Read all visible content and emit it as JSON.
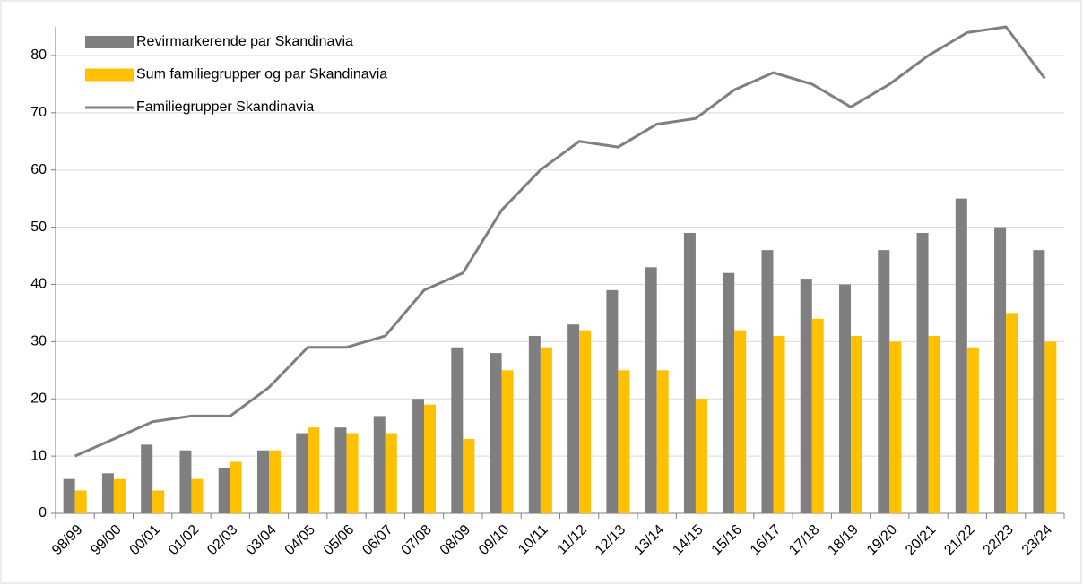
{
  "chart_data": {
    "type": "bar_line",
    "categories": [
      "98/99",
      "99/00",
      "00/01",
      "01/02",
      "02/03",
      "03/04",
      "04/05",
      "05/06",
      "06/07",
      "07/08",
      "08/09",
      "09/10",
      "10/11",
      "11/12",
      "12/13",
      "13/14",
      "14/15",
      "15/16",
      "16/17",
      "17/18",
      "18/19",
      "19/20",
      "20/21",
      "21/22",
      "22/23",
      "23/24"
    ],
    "series": [
      {
        "name": "Revirmarkerende par Skandinavia",
        "type": "bar",
        "color": "#7f7f7f",
        "values": [
          6,
          7,
          12,
          11,
          8,
          11,
          14,
          15,
          17,
          20,
          29,
          28,
          31,
          33,
          39,
          43,
          49,
          42,
          46,
          41,
          40,
          46,
          49,
          55,
          50,
          46
        ]
      },
      {
        "name": "Sum familiegrupper og par Skandinavia",
        "type": "bar",
        "color": "#ffc000",
        "values": [
          4,
          6,
          4,
          6,
          9,
          11,
          15,
          14,
          14,
          19,
          13,
          25,
          29,
          32,
          25,
          25,
          20,
          32,
          31,
          34,
          31,
          30,
          31,
          29,
          35,
          30
        ]
      },
      {
        "name": "Familiegrupper Skandinavia",
        "type": "line",
        "color": "#7f7f7f",
        "values": [
          10,
          13,
          16,
          17,
          17,
          22,
          29,
          29,
          31,
          39,
          42,
          53,
          60,
          65,
          64,
          68,
          69,
          74,
          77,
          75,
          71,
          75,
          80,
          84,
          85,
          76
        ]
      }
    ],
    "ylim": [
      0,
      85
    ],
    "yticks": [
      0,
      10,
      20,
      30,
      40,
      50,
      60,
      70,
      80
    ],
    "grid": true,
    "legend": "top-left"
  }
}
